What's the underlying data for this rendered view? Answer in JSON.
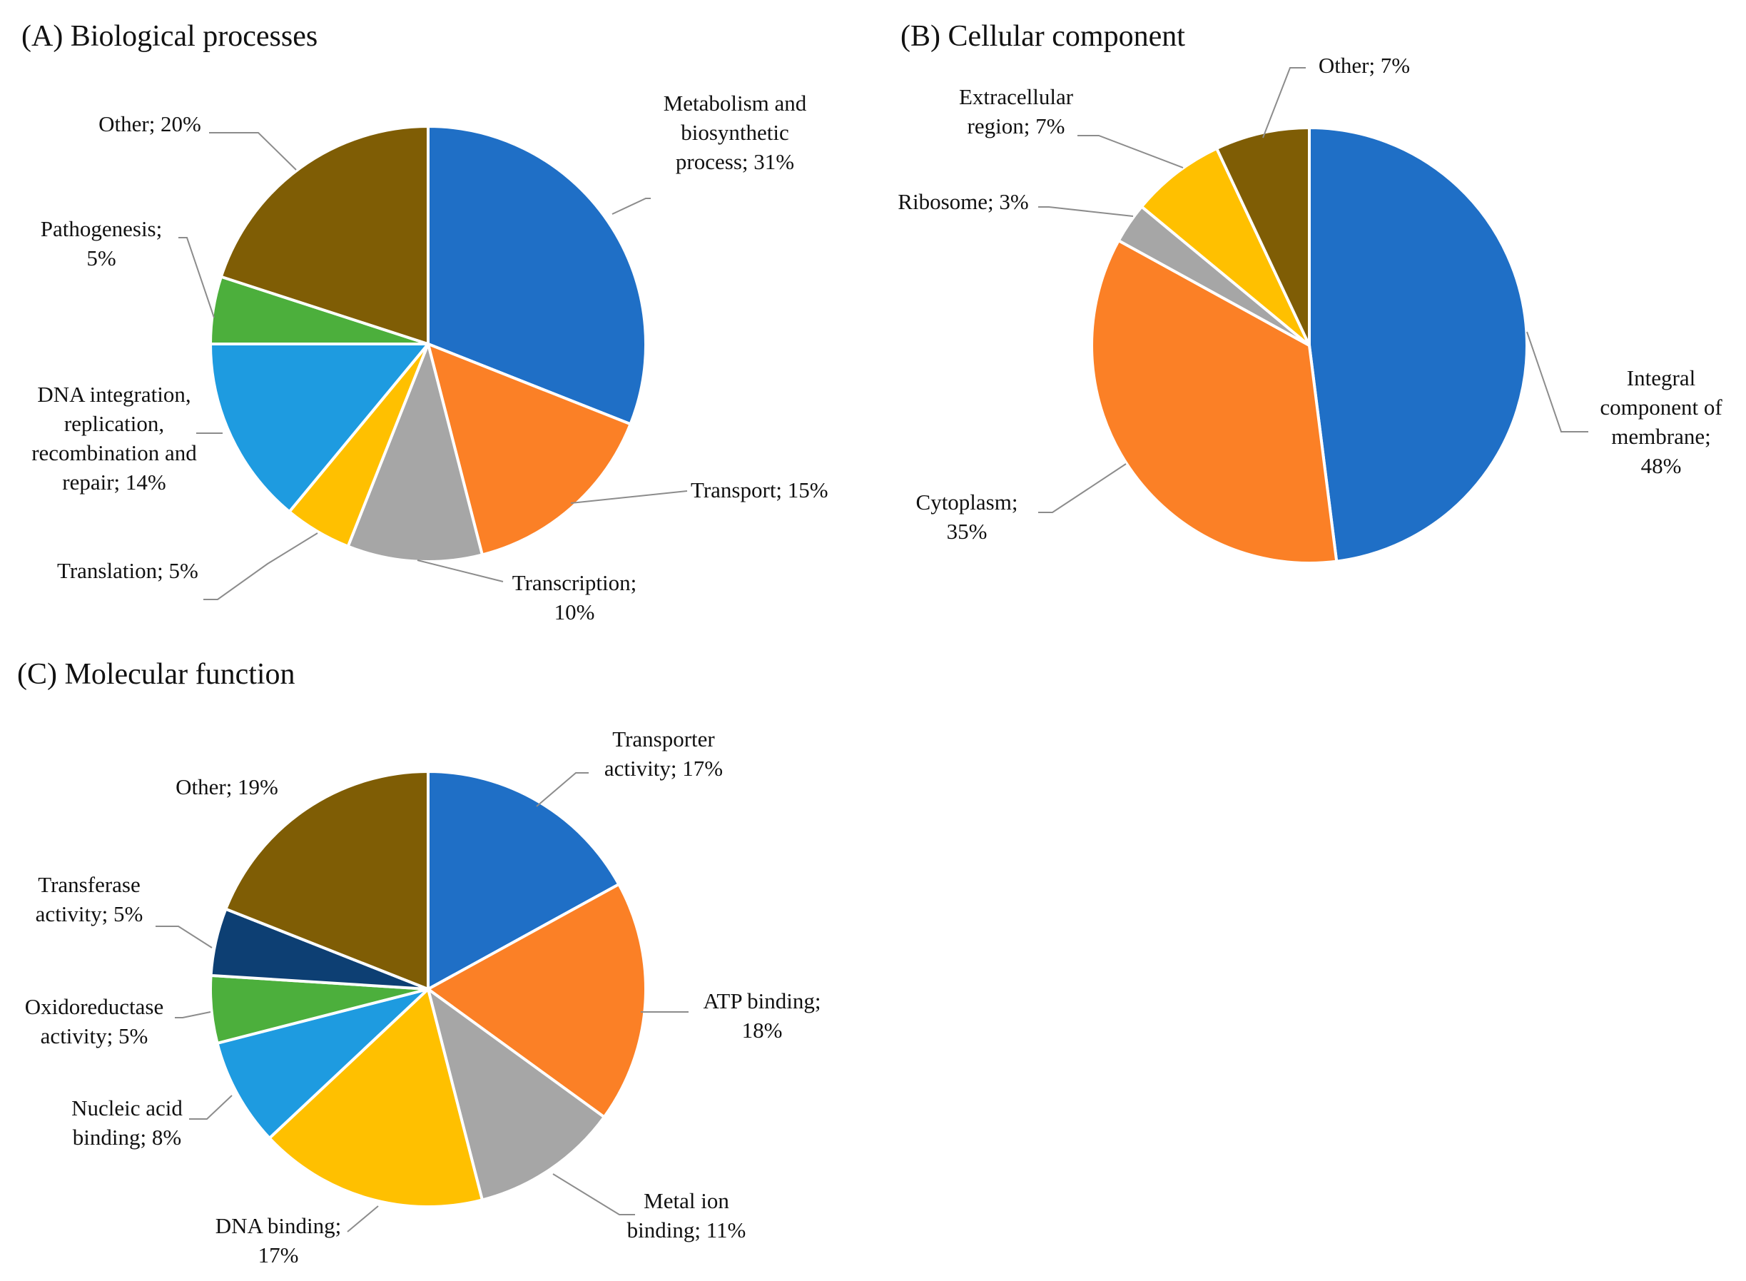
{
  "chart_data": [
    {
      "type": "pie",
      "title": "(A) Biological processes",
      "start": "top, clockwise",
      "slices": [
        {
          "label": "Metabolism and biosynthetic process",
          "value": 31,
          "value_text": "31%",
          "color": "#1f6fc6"
        },
        {
          "label": "Transport",
          "value": 15,
          "value_text": "15%",
          "color": "#fb8026"
        },
        {
          "label": "Transcription",
          "value": 10,
          "value_text": "10%",
          "color": "#a6a6a6"
        },
        {
          "label": "Translation",
          "value": 5,
          "value_text": "5%",
          "color": "#ffc000"
        },
        {
          "label": "DNA integration, replication, recombination and repair",
          "value": 14,
          "value_text": "14%",
          "color": "#1e9be0"
        },
        {
          "label": "Pathogenesis",
          "value": 5,
          "value_text": "5%",
          "color": "#4caf3c"
        },
        {
          "label": "Other",
          "value": 20,
          "value_text": "20%",
          "color": "#7f5d05"
        }
      ],
      "label_lines": [
        [
          "Metabolism and",
          "biosynthetic",
          "process; 31%"
        ],
        [
          "Transport; 15%"
        ],
        [
          "Transcription;",
          "10%"
        ],
        [
          "Translation; 5%"
        ],
        [
          "DNA integration,",
          "replication,",
          "recombination and",
          "repair; 14%"
        ],
        [
          "Pathogenesis;",
          "5%"
        ],
        [
          "Other; 20%"
        ]
      ]
    },
    {
      "type": "pie",
      "title": "(B) Cellular component",
      "start": "top, clockwise",
      "slices": [
        {
          "label": "Integral component of membrane",
          "value": 48,
          "value_text": "48%",
          "color": "#1f6fc6"
        },
        {
          "label": "Cytoplasm",
          "value": 35,
          "value_text": "35%",
          "color": "#fb8026"
        },
        {
          "label": "Ribosome",
          "value": 3,
          "value_text": "3%",
          "color": "#a6a6a6"
        },
        {
          "label": "Extracellular region",
          "value": 7,
          "value_text": "7%",
          "color": "#ffc000"
        },
        {
          "label": "Other",
          "value": 7,
          "value_text": "7%",
          "color": "#7f5d05"
        }
      ],
      "label_lines": [
        [
          "Integral",
          "component of",
          "membrane;",
          "48%"
        ],
        [
          "Cytoplasm;",
          "35%"
        ],
        [
          "Ribosome; 3%"
        ],
        [
          "Extracellular",
          "region;  7%"
        ],
        [
          "Other; 7%"
        ]
      ]
    },
    {
      "type": "pie",
      "title": "(C) Molecular function",
      "start": "top, clockwise",
      "slices": [
        {
          "label": "Transporter activity",
          "value": 17,
          "value_text": "17%",
          "color": "#1f6fc6"
        },
        {
          "label": "ATP binding",
          "value": 18,
          "value_text": "18%",
          "color": "#fb8026"
        },
        {
          "label": "Metal ion binding",
          "value": 11,
          "value_text": "11%",
          "color": "#a6a6a6"
        },
        {
          "label": "DNA binding",
          "value": 17,
          "value_text": "17%",
          "color": "#ffc000"
        },
        {
          "label": "Nucleic acid binding",
          "value": 8,
          "value_text": "8%",
          "color": "#1e9be0"
        },
        {
          "label": "Oxidoreductase activity",
          "value": 5,
          "value_text": "5%",
          "color": "#4caf3c"
        },
        {
          "label": "Transferase activity",
          "value": 5,
          "value_text": "5%",
          "color": "#0d3f73"
        },
        {
          "label": "Other",
          "value": 19,
          "value_text": "19%",
          "color": "#7f5d05"
        }
      ],
      "label_lines": [
        [
          "Transporter",
          "activity; 17%"
        ],
        [
          "ATP binding;",
          "18%"
        ],
        [
          "Metal ion",
          "binding;  11%"
        ],
        [
          "DNA binding;",
          "17%"
        ],
        [
          "Nucleic acid",
          "binding;  8%"
        ],
        [
          "Oxidoreductase",
          "activity; 5%"
        ],
        [
          "Transferase",
          "activity; 5%"
        ],
        [
          "Other; 19%"
        ]
      ]
    }
  ]
}
